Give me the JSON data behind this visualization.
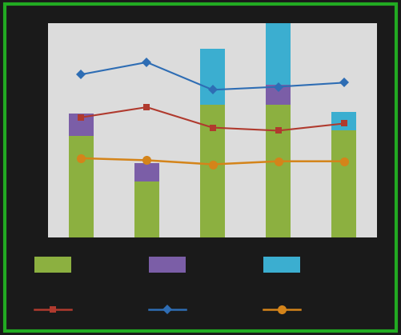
{
  "x_positions": [
    1,
    2,
    3,
    4,
    5
  ],
  "bar_green": [
    100,
    55,
    130,
    130,
    105
  ],
  "bar_purple": [
    22,
    18,
    0,
    20,
    0
  ],
  "bar_cyan_top": [
    0,
    0,
    55,
    95,
    18
  ],
  "line_red": [
    118,
    128,
    108,
    105,
    112
  ],
  "line_blue": [
    160,
    172,
    145,
    148,
    152
  ],
  "line_orange": [
    78,
    76,
    72,
    75,
    75
  ],
  "color_green": "#8CB040",
  "color_purple": "#7B5EA7",
  "color_cyan": "#3BAED0",
  "color_red": "#B03A2E",
  "color_blue": "#2E6DB4",
  "color_orange": "#D4841A",
  "bg_color": "#1a1a1a",
  "plot_bg": "#DCDCDC",
  "outer_bg": "#1a1a1a",
  "border_color": "#22AA22",
  "ylim": [
    0,
    210
  ],
  "bar_width": 0.38,
  "grid_color": "#AAAAAA",
  "grid_linewidth": 0.6
}
